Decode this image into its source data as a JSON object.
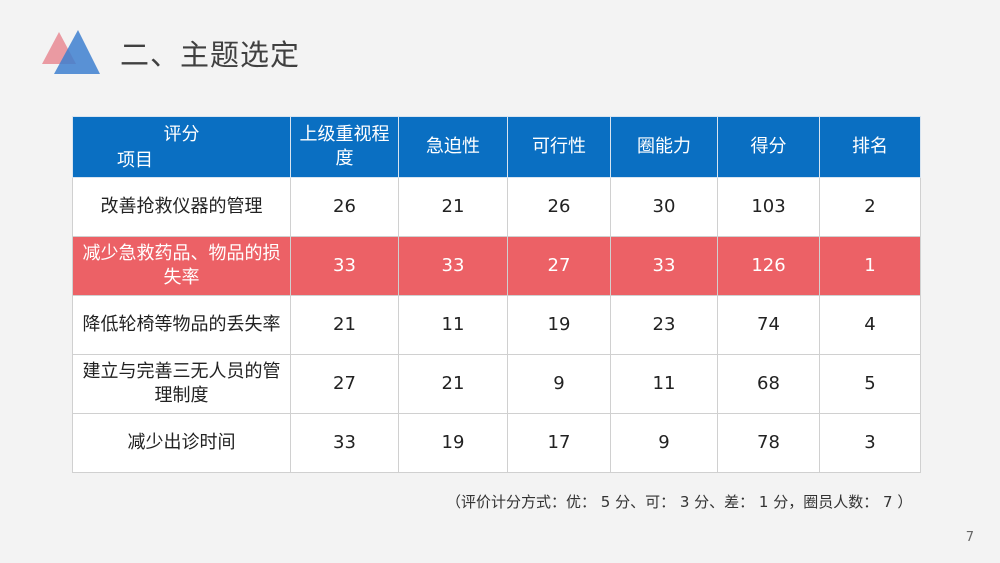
{
  "title": "二、主题选定",
  "table": {
    "corner_top": "评分",
    "corner_bottom": "项目",
    "headers": [
      "上级重视程度",
      "急迫性",
      "可行性",
      "圈能力",
      "得分",
      "排名"
    ],
    "rows": [
      {
        "item": "改善抢救仪器的管理",
        "values": [
          "26",
          "21",
          "26",
          "30",
          "103",
          "2"
        ]
      },
      {
        "item": "减少急救药品、物品的损失率",
        "values": [
          "33",
          "33",
          "27",
          "33",
          "126",
          "1"
        ],
        "highlight": true
      },
      {
        "item": "降低轮椅等物品的丢失率",
        "values": [
          "21",
          "11",
          "19",
          "23",
          "74",
          "4"
        ]
      },
      {
        "item": "建立与完善三无人员的管理制度",
        "values": [
          "27",
          "21",
          "9",
          "11",
          "68",
          "5"
        ]
      },
      {
        "item": "减少出诊时间",
        "values": [
          "33",
          "19",
          "17",
          "9",
          "78",
          "3"
        ]
      }
    ]
  },
  "note": "（评价计分方式：优： 5 分、可： 3 分、差： 1 分，圈员人数： 7 ）",
  "page_number": "7",
  "colors": {
    "header": "#0a6fc2",
    "highlight": "#ec6166",
    "logo_red": "#e8808a",
    "logo_blue": "#3a7ac9"
  }
}
